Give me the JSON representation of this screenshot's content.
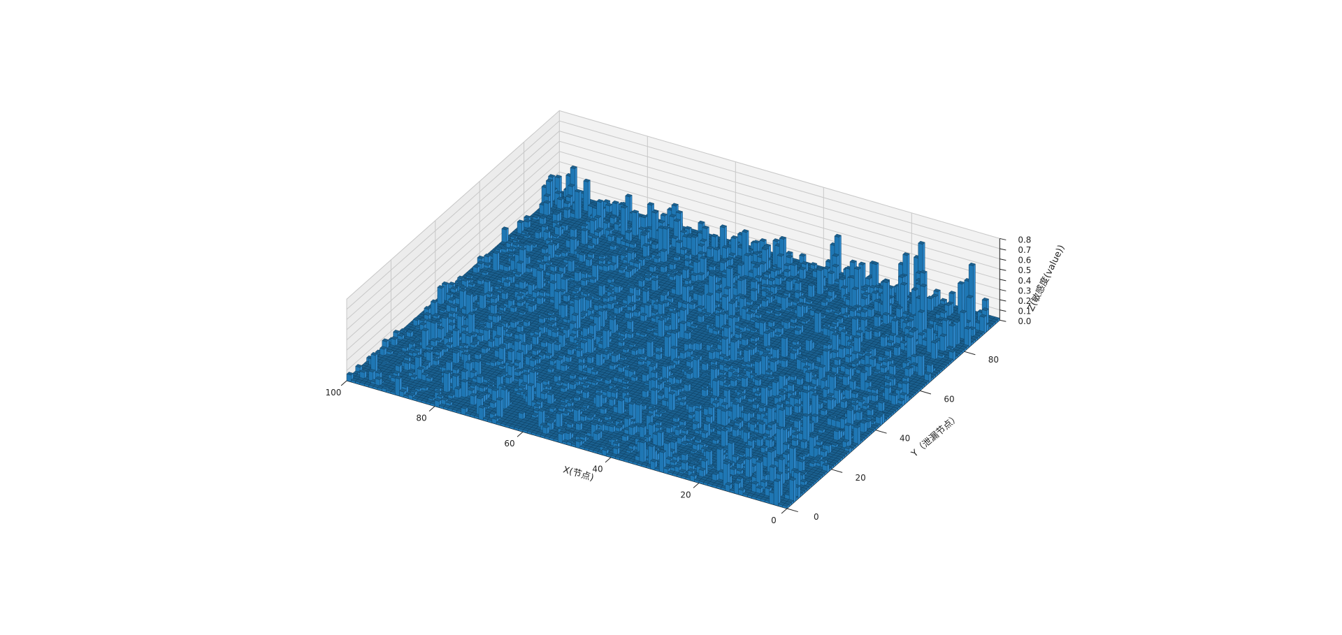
{
  "chart_data": {
    "type": "bar3d",
    "title": "",
    "xlabel": "X(节点)",
    "ylabel": "Y（泄漏节点）",
    "zlabel": "Z(敏感度(value))",
    "xlim": [
      0,
      100
    ],
    "ylim": [
      0,
      96
    ],
    "zlim": [
      0,
      0.8
    ],
    "x_ticks": [
      0,
      20,
      40,
      60,
      80,
      100
    ],
    "y_ticks": [
      0,
      20,
      40,
      60,
      80
    ],
    "z_ticks": [
      "0.0",
      "0.1",
      "0.2",
      "0.3",
      "0.4",
      "0.5",
      "0.6",
      "0.7",
      "0.8"
    ],
    "grid": true,
    "bar_color": "#1f77b4",
    "bar_color_top": "#1a5f8e",
    "bar_color_side": "#2c86c8",
    "grid_size": {
      "nx": 100,
      "ny": 96
    },
    "baseline_value": 0.02,
    "notable_bars": [
      {
        "x": 2,
        "y": 88,
        "z": 0.66
      },
      {
        "x": 3,
        "y": 78,
        "z": 0.3
      },
      {
        "x": 9,
        "y": 80,
        "z": 0.52
      },
      {
        "x": 12,
        "y": 86,
        "z": 0.5
      },
      {
        "x": 16,
        "y": 93,
        "z": 0.6
      },
      {
        "x": 20,
        "y": 94,
        "z": 0.42
      },
      {
        "x": 26,
        "y": 84,
        "z": 0.4
      },
      {
        "x": 30,
        "y": 90,
        "z": 0.3
      },
      {
        "x": 36,
        "y": 95,
        "z": 0.38
      },
      {
        "x": 46,
        "y": 90,
        "z": 0.33
      },
      {
        "x": 48,
        "y": 70,
        "z": 0.4
      },
      {
        "x": 50,
        "y": 66,
        "z": 0.38
      },
      {
        "x": 63,
        "y": 89,
        "z": 0.24
      },
      {
        "x": 70,
        "y": 45,
        "z": 0.3
      },
      {
        "x": 73,
        "y": 95,
        "z": 0.22
      },
      {
        "x": 80,
        "y": 30,
        "z": 0.2
      },
      {
        "x": 85,
        "y": 85,
        "z": 0.3
      },
      {
        "x": 90,
        "y": 60,
        "z": 0.25
      },
      {
        "x": 95,
        "y": 93,
        "z": 0.35
      },
      {
        "x": 98,
        "y": 88,
        "z": 0.28
      }
    ]
  }
}
